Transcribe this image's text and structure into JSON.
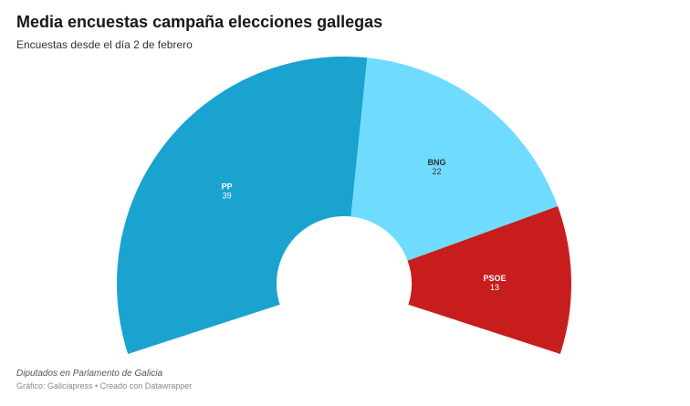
{
  "title": "Media encuestas campaña elecciones gallegas",
  "subtitle": "Encuestas desde el día 2 de febrero",
  "notes": "Diputados en Parlamento de Galicia",
  "byline": "Gráfico: Galiciapress • Creado con Datawrapper",
  "chart_data": {
    "type": "pie",
    "variant": "semi-donut (parliament)",
    "categories": [
      "PP",
      "BNG",
      "PSOE"
    ],
    "values": [
      39,
      22,
      13
    ],
    "colors": [
      "#1aa3cf",
      "#6fdbff",
      "#c71e1d"
    ],
    "label_colors": [
      "#ffffff",
      "#333333",
      "#ffffff"
    ]
  }
}
